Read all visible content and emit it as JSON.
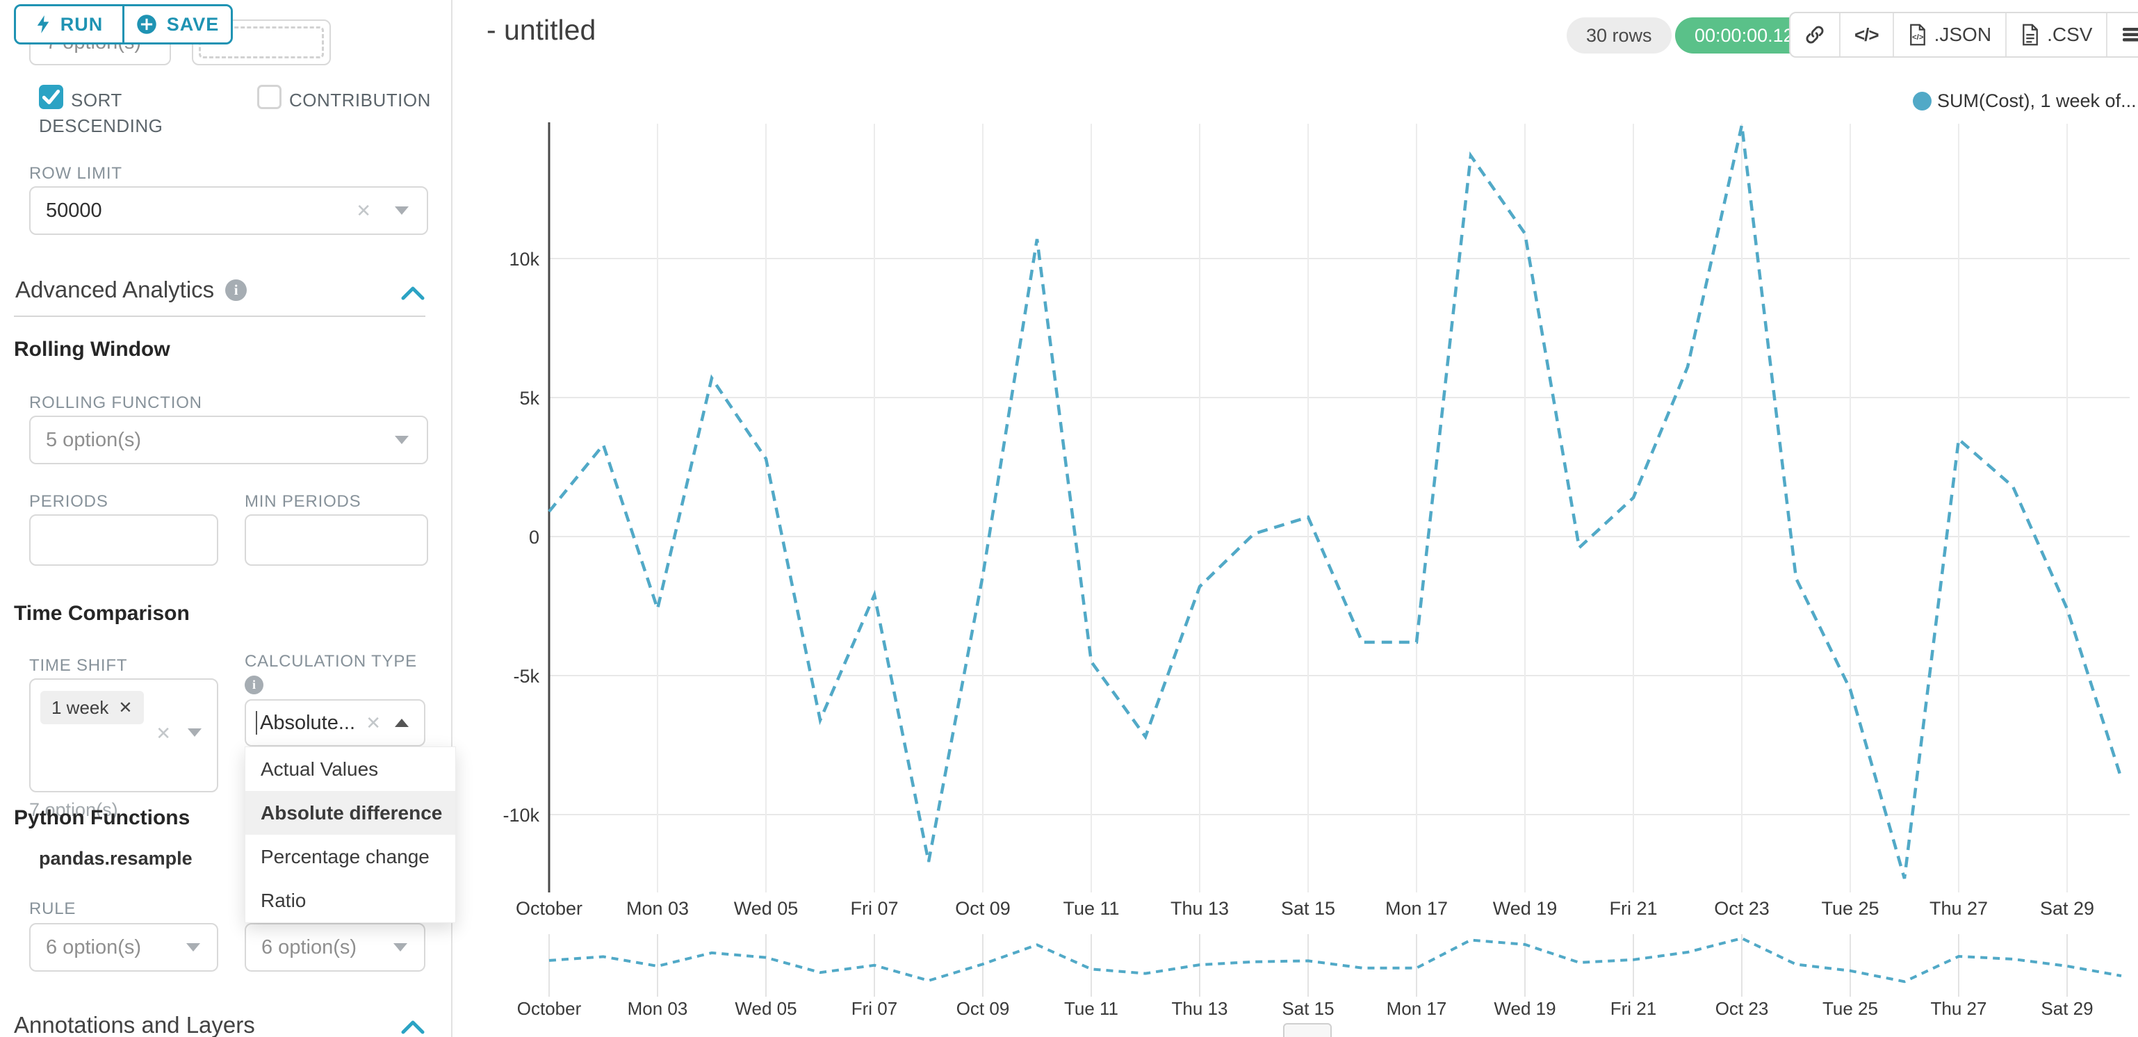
{
  "sidebar": {
    "run_label": "RUN",
    "save_label": "SAVE",
    "partial_option_label": "7 option(s)",
    "sort_descending_label": "SORT DESCENDING",
    "contribution_label": "CONTRIBUTION",
    "row_limit_label": "ROW LIMIT",
    "row_limit_value": "50000",
    "advanced_analytics_title": "Advanced Analytics",
    "rolling_window": {
      "title": "Rolling Window",
      "rolling_function_label": "ROLLING FUNCTION",
      "rolling_function_value": "5 option(s)",
      "periods_label": "PERIODS",
      "min_periods_label": "MIN PERIODS"
    },
    "time_comparison": {
      "title": "Time Comparison",
      "time_shift_label": "TIME SHIFT",
      "time_shift_tag": "1 week",
      "time_shift_hint": "7 option(s)",
      "calculation_type_label": "CALCULATION TYPE",
      "calculation_type_value": "Absolute...",
      "dropdown_options": [
        "Actual Values",
        "Absolute difference",
        "Percentage change",
        "Ratio"
      ],
      "dropdown_selected": "Absolute difference"
    },
    "python_functions": {
      "title": "Python Functions",
      "subtitle": "pandas.resample",
      "rule_label": "RULE",
      "rule_value_left": "6 option(s)",
      "rule_value_right": "6 option(s)"
    },
    "annotations_title": "Annotations and Layers"
  },
  "header": {
    "title": "- untitled",
    "rows_badge": "30 rows",
    "timer": "00:00:00.12",
    "json_label": ".JSON",
    "csv_label": ".CSV"
  },
  "legend": {
    "label": "SUM(Cost), 1 week of...",
    "color": "#51a9c7"
  },
  "chart_data": {
    "type": "line",
    "title": "",
    "series": [
      {
        "name": "SUM(Cost), 1 week of...",
        "dates": [
          "Oct 01",
          "Oct 02",
          "Oct 03",
          "Oct 04",
          "Oct 05",
          "Oct 06",
          "Oct 07",
          "Oct 08",
          "Oct 09",
          "Oct 10",
          "Oct 11",
          "Oct 12",
          "Oct 13",
          "Oct 14",
          "Oct 15",
          "Oct 16",
          "Oct 17",
          "Oct 18",
          "Oct 19",
          "Oct 20",
          "Oct 21",
          "Oct 22",
          "Oct 23",
          "Oct 24",
          "Oct 25",
          "Oct 26",
          "Oct 27",
          "Oct 28",
          "Oct 29",
          "Oct 30"
        ],
        "values": [
          900,
          3300,
          -2600,
          5700,
          2800,
          -6600,
          -2100,
          -11700,
          -1400,
          10700,
          -4500,
          -7200,
          -1800,
          100,
          700,
          -3800,
          -3800,
          13700,
          10900,
          -400,
          1400,
          6100,
          14800,
          -1500,
          -5500,
          -12300,
          3500,
          1800,
          -2600,
          -8700
        ]
      }
    ],
    "x_tick_labels": [
      "October",
      "Mon 03",
      "Wed 05",
      "Fri 07",
      "Oct 09",
      "Tue 11",
      "Thu 13",
      "Sat 15",
      "Mon 17",
      "Wed 19",
      "Fri 21",
      "Oct 23",
      "Tue 25",
      "Thu 27",
      "Sat 29"
    ],
    "y_tick_labels": [
      "10k",
      "5k",
      "0",
      "-5k",
      "-10k"
    ],
    "y_tick_values": [
      10000,
      5000,
      0,
      -5000,
      -10000
    ],
    "ylim": [
      -12800,
      15000
    ],
    "grid": true,
    "line_style": "dashed",
    "line_color": "#51a9c7",
    "legend_position": "top-right",
    "has_mini_chart": true
  }
}
